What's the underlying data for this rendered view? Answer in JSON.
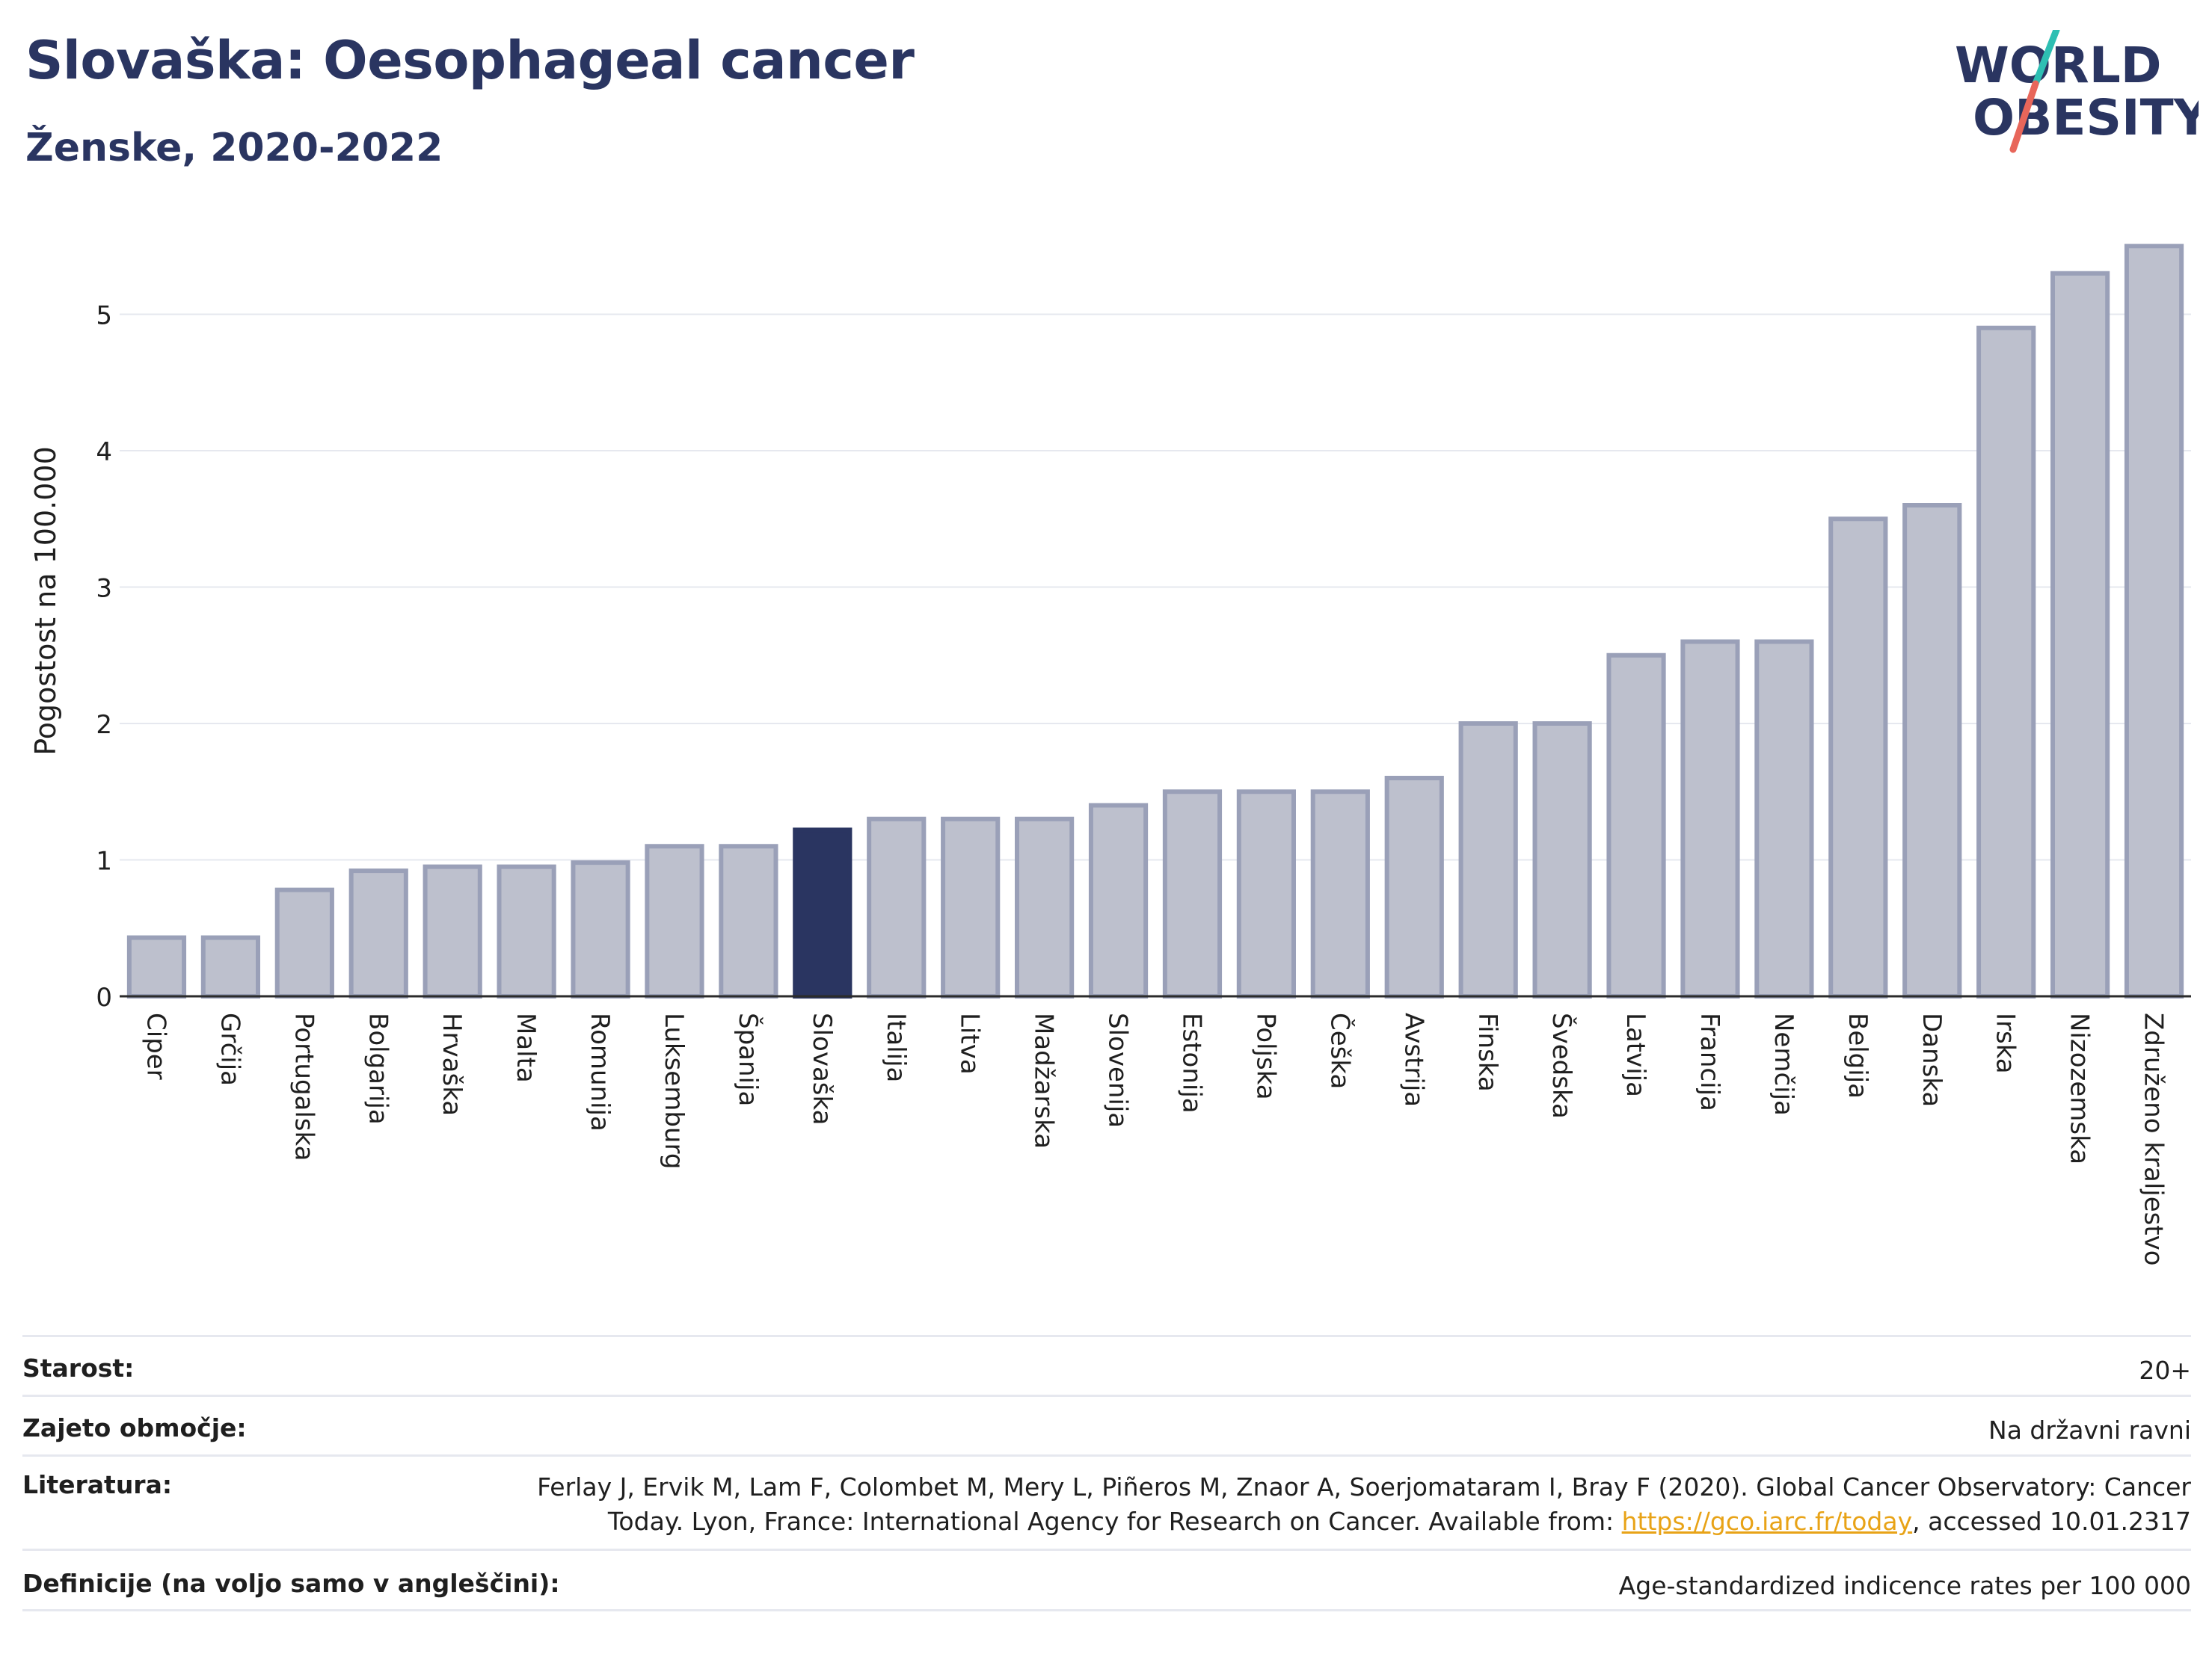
{
  "header": {
    "title": "Slovaška: Oesophageal cancer",
    "subtitle": "Ženske, 2020-2022"
  },
  "logo": {
    "line1": "WORLD",
    "line2": "OBESITY",
    "accent_colors": [
      "#2ebfb3",
      "#e8665a"
    ]
  },
  "colors": {
    "bar": "#bdc0cd",
    "bar_stroke": "#9aa0b8",
    "highlight": "#2a3561",
    "grid": "#e6e8ef",
    "axis": "#2b2b2b"
  },
  "chart_data": {
    "type": "bar",
    "ylabel": "Pogostost na 100.000",
    "ylim": [
      0,
      5.5
    ],
    "yticks": [
      0,
      1,
      2,
      3,
      4,
      5
    ],
    "highlight": "Slovaška",
    "categories": [
      "Ciper",
      "Grčija",
      "Portugalska",
      "Bolgarija",
      "Hrvaška",
      "Malta",
      "Romunija",
      "Luksemburg",
      "Španija",
      "Slovaška",
      "Italija",
      "Litva",
      "Madžarska",
      "Slovenija",
      "Estonija",
      "Poljska",
      "Češka",
      "Avstrija",
      "Finska",
      "Švedska",
      "Latvija",
      "Francija",
      "Nemčija",
      "Belgija",
      "Danska",
      "Irska",
      "Nizozemska",
      "Združeno kraljestvo"
    ],
    "values": [
      0.43,
      0.43,
      0.78,
      0.92,
      0.95,
      0.95,
      0.98,
      1.1,
      1.1,
      1.22,
      1.3,
      1.3,
      1.3,
      1.4,
      1.5,
      1.5,
      1.5,
      1.6,
      2.0,
      2.0,
      2.5,
      2.6,
      2.6,
      3.5,
      3.6,
      4.9,
      5.3,
      5.5
    ]
  },
  "footer": {
    "rows": [
      {
        "label": "Starost:",
        "value": "20+"
      },
      {
        "label": "Zajeto območje:",
        "value": "Na državni ravni"
      },
      {
        "label": "Literatura:",
        "value_line1": "Ferlay J, Ervik M, Lam F, Colombet M, Mery L, Piñeros M, Znaor A, Soerjomataram I, Bray F (2020). Global Cancer Observatory: Cancer",
        "value_line2_pre": "Today. Lyon, France: International Agency for Research on Cancer. Available from: ",
        "link": "https://gco.iarc.fr/today",
        "value_line2_post": ", accessed 10.01.2317"
      },
      {
        "label": "Definicije (na voljo samo v angleščini):",
        "value": "Age-standardized indicence rates per 100 000"
      }
    ]
  }
}
